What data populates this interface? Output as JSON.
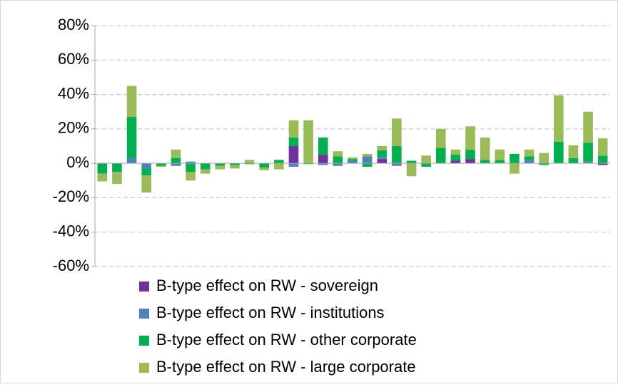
{
  "chart_data": {
    "type": "stacked-bar",
    "categories": [
      null,
      null,
      null,
      null,
      null,
      null,
      null,
      null,
      null,
      null,
      null,
      null,
      null,
      null,
      null,
      null,
      null,
      null,
      null,
      null,
      null,
      null,
      null,
      null,
      null,
      null,
      null,
      null,
      null,
      null,
      null,
      null,
      null,
      null,
      null
    ],
    "series": [
      {
        "name": "B-type effect on RW - sovereign",
        "color": "#7030a0",
        "values": [
          0,
          0,
          0,
          0,
          0,
          0,
          0,
          0,
          0,
          0,
          0,
          0,
          0,
          10,
          0,
          5,
          0,
          0,
          0,
          2.5,
          0,
          0,
          0,
          0,
          1.5,
          2.5,
          0,
          0,
          0,
          0,
          0,
          0,
          0,
          0,
          -1
        ]
      },
      {
        "name": "B-type effect on RW - institutions",
        "color": "#4f81bd",
        "values": [
          0,
          0,
          3,
          -3,
          0,
          -1.5,
          1,
          0,
          0,
          0,
          0,
          0,
          0,
          -2,
          0,
          -1,
          -1.5,
          1.5,
          4,
          1,
          -1.5,
          0,
          0,
          0,
          0,
          0,
          0,
          0,
          0,
          2,
          0,
          0,
          0,
          1,
          0
        ]
      },
      {
        "name": "B-type effect on RW - other corporate",
        "color": "#00b050",
        "values": [
          -6,
          -5,
          24,
          -4,
          -1.5,
          3,
          -5,
          -3.5,
          -1.5,
          -1,
          -0.5,
          -2.5,
          2,
          5,
          -0.5,
          10,
          4,
          1,
          -2,
          4,
          10,
          1.5,
          -2,
          9,
          3.5,
          5.5,
          2,
          2,
          5.5,
          2,
          -1,
          12.5,
          3,
          11,
          4.5
        ]
      },
      {
        "name": "B-type effect on RW - large corporate",
        "color": "#9bbb59",
        "values": [
          -4.5,
          -7,
          18,
          -10,
          -0.5,
          5,
          -5,
          -2.5,
          -2,
          -2,
          2,
          -1.5,
          -3.5,
          10,
          25,
          0,
          3,
          1,
          1.5,
          2.5,
          16,
          -7.5,
          4.5,
          11,
          3,
          13.5,
          13,
          6,
          -6,
          4,
          6,
          27,
          7.5,
          18,
          10
        ]
      }
    ],
    "ylim": [
      -60,
      80
    ],
    "yticks": [
      {
        "value": -60,
        "label": "-60%"
      },
      {
        "value": -40,
        "label": "-40%"
      },
      {
        "value": -20,
        "label": "-20%"
      },
      {
        "value": 0,
        "label": "0%"
      },
      {
        "value": 20,
        "label": "20%"
      },
      {
        "value": 40,
        "label": "40%"
      },
      {
        "value": 60,
        "label": "60%"
      },
      {
        "value": 80,
        "label": "80%"
      }
    ],
    "grid": true
  }
}
